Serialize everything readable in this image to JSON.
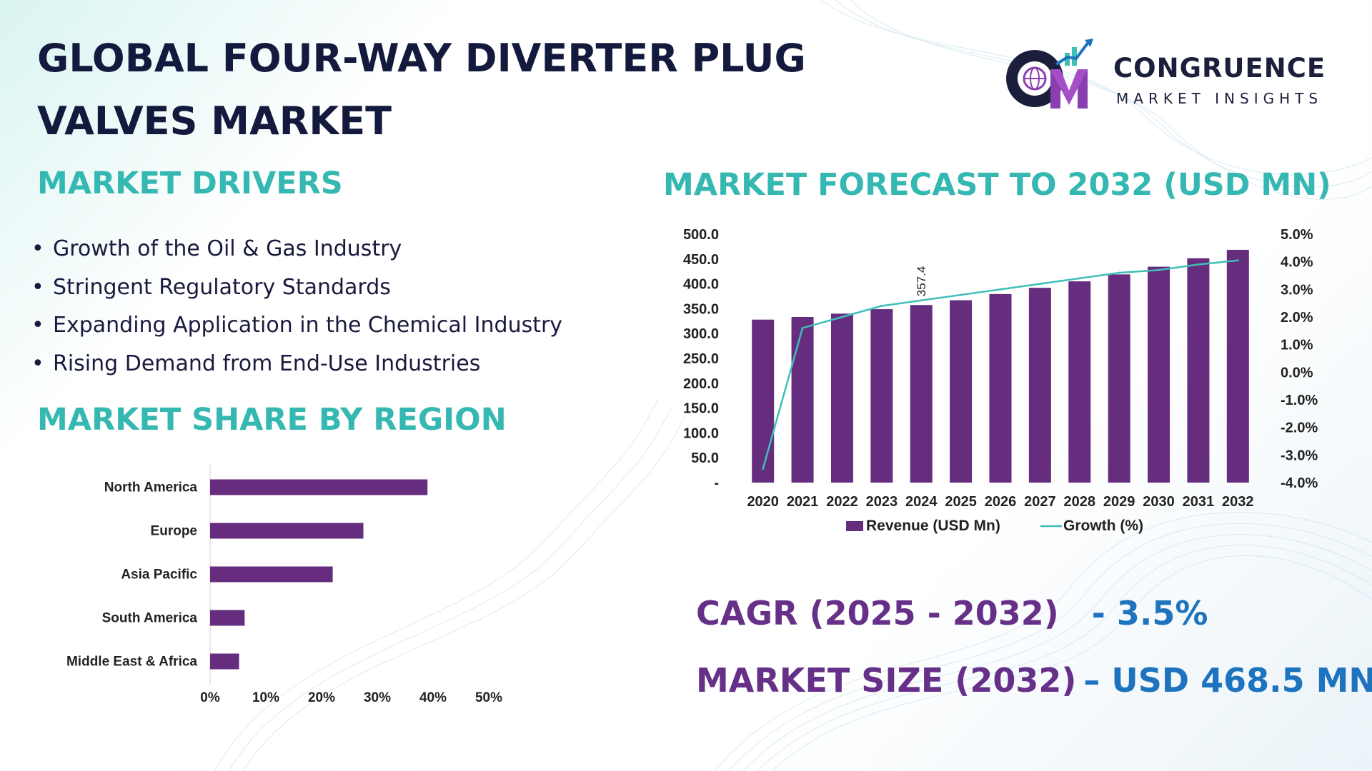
{
  "title": "GLOBAL FOUR-WAY DIVERTER PLUG VALVES MARKET",
  "logo": {
    "name": "CONGRUENCE",
    "subtitle": "MARKET INSIGHTS",
    "mark_letters": "CM"
  },
  "drivers": {
    "heading": "MARKET DRIVERS",
    "bullet": "•",
    "items": [
      "Growth of the Oil & Gas Industry",
      "Stringent Regulatory Standards",
      "Expanding Application in the Chemical Industry",
      "Rising Demand from End-Use Industries"
    ]
  },
  "region": {
    "heading": "MARKET SHARE BY REGION"
  },
  "forecast": {
    "heading": "MARKET FORECAST TO 2032 (USD MN)"
  },
  "kpis": {
    "cagr_label": "CAGR (2025 - 2032)",
    "cagr_value": "- 3.5%",
    "size_label": "MARKET SIZE (2032)",
    "size_value": "– USD 468.5 MN"
  },
  "colors": {
    "bar": "#662d7e",
    "line": "#3fbfb8",
    "heading": "#35b8b1",
    "kpi_label": "#663088",
    "kpi_value": "#1e73be"
  },
  "chart_data": [
    {
      "type": "bar",
      "orientation": "horizontal",
      "categories": [
        "North America",
        "Europe",
        "Asia Pacific",
        "South America",
        "Middle East & Africa"
      ],
      "values": [
        0.39,
        0.275,
        0.22,
        0.062,
        0.052
      ],
      "xticks": [
        "0%",
        "10%",
        "20%",
        "30%",
        "40%",
        "50%"
      ],
      "xlim": [
        0,
        0.5
      ],
      "title": "",
      "xlabel": "",
      "ylabel": ""
    },
    {
      "type": "bar",
      "categories": [
        "2020",
        "2021",
        "2022",
        "2023",
        "2024",
        "2025",
        "2026",
        "2027",
        "2028",
        "2029",
        "2030",
        "2031",
        "2032"
      ],
      "series": [
        {
          "name": "Revenue (USD Mn)",
          "type": "bar",
          "axis": "left",
          "values": [
            328.0,
            333.3,
            340.0,
            349.0,
            357.4,
            367.0,
            379.5,
            392.0,
            405.0,
            419.0,
            434.5,
            451.5,
            468.5
          ]
        },
        {
          "name": "Growth (%)",
          "type": "line",
          "axis": "right",
          "values": [
            -3.5,
            1.6,
            2.0,
            2.4,
            2.6,
            2.8,
            3.0,
            3.2,
            3.4,
            3.6,
            3.7,
            3.9,
            4.05
          ]
        }
      ],
      "data_labels": [
        {
          "category": "2024",
          "text": "357.4"
        }
      ],
      "ylim_left": [
        0,
        500
      ],
      "yticks_left": [
        "-",
        "50.0",
        "100.0",
        "150.0",
        "200.0",
        "250.0",
        "300.0",
        "350.0",
        "400.0",
        "450.0",
        "500.0"
      ],
      "ylim_right": [
        -4.0,
        5.0
      ],
      "yticks_right": [
        "-4.0%",
        "-3.0%",
        "-2.0%",
        "-1.0%",
        "0.0%",
        "1.0%",
        "2.0%",
        "3.0%",
        "4.0%",
        "5.0%"
      ],
      "legend": "bottom",
      "grid": false,
      "title": "",
      "xlabel": "",
      "ylabel": ""
    }
  ]
}
